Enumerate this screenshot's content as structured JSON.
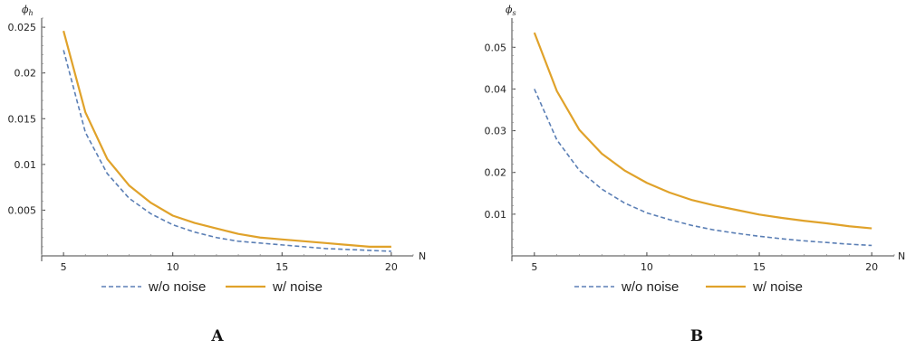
{
  "chart_data": [
    {
      "type": "line",
      "panel_label": "A",
      "ylabel": "ϕ",
      "ylabel_sub": "h",
      "xlabel": "N",
      "xlim": [
        4,
        21
      ],
      "ylim": [
        0,
        0.026
      ],
      "xticks": [
        5,
        10,
        15,
        20
      ],
      "xtick_labels": [
        "5",
        "10",
        "15",
        "20"
      ],
      "yticks": [
        0.005,
        0.01,
        0.015,
        0.02,
        0.025
      ],
      "ytick_labels": [
        "0.005",
        "0.01",
        "0.015",
        "0.02",
        "0.025"
      ],
      "x": [
        5,
        6,
        7,
        8,
        9,
        10,
        11,
        12,
        13,
        14,
        15,
        16,
        17,
        18,
        19,
        20
      ],
      "series": [
        {
          "name": "w/o noise",
          "style": "dashed",
          "color": "#5b7fb5",
          "values": [
            0.0225,
            0.0135,
            0.009,
            0.0063,
            0.0046,
            0.0034,
            0.0026,
            0.002,
            0.0016,
            0.0014,
            0.0012,
            0.001,
            0.0008,
            0.0007,
            0.0006,
            0.0005
          ]
        },
        {
          "name": "w/ noise",
          "style": "solid",
          "color": "#e0a22a",
          "values": [
            0.0246,
            0.0157,
            0.0106,
            0.0077,
            0.0058,
            0.0044,
            0.0036,
            0.003,
            0.0024,
            0.002,
            0.0018,
            0.0016,
            0.0014,
            0.0012,
            0.001,
            0.001
          ]
        }
      ],
      "legend": "bottom"
    },
    {
      "type": "line",
      "panel_label": "B",
      "ylabel": "ϕ",
      "ylabel_sub": "s",
      "xlabel": "N",
      "xlim": [
        4,
        21
      ],
      "ylim": [
        0,
        0.057
      ],
      "xticks": [
        5,
        10,
        15,
        20
      ],
      "xtick_labels": [
        "5",
        "10",
        "15",
        "20"
      ],
      "yticks": [
        0.01,
        0.02,
        0.03,
        0.04,
        0.05
      ],
      "ytick_labels": [
        "0.01",
        "0.02",
        "0.03",
        "0.04",
        "0.05"
      ],
      "x": [
        5,
        6,
        7,
        8,
        9,
        10,
        11,
        12,
        13,
        14,
        15,
        16,
        17,
        18,
        19,
        20
      ],
      "series": [
        {
          "name": "w/o noise",
          "style": "dashed",
          "color": "#5b7fb5",
          "values": [
            0.04,
            0.0278,
            0.0205,
            0.016,
            0.0127,
            0.0103,
            0.0087,
            0.0073,
            0.0062,
            0.0054,
            0.0047,
            0.0041,
            0.0036,
            0.0032,
            0.0028,
            0.0025
          ]
        },
        {
          "name": "w/ noise",
          "style": "solid",
          "color": "#e0a22a",
          "values": [
            0.0535,
            0.0395,
            0.0302,
            0.0245,
            0.0205,
            0.0175,
            0.0152,
            0.0134,
            0.0121,
            0.011,
            0.0099,
            0.0091,
            0.0084,
            0.0078,
            0.0071,
            0.0066
          ]
        }
      ],
      "legend": "bottom"
    }
  ]
}
